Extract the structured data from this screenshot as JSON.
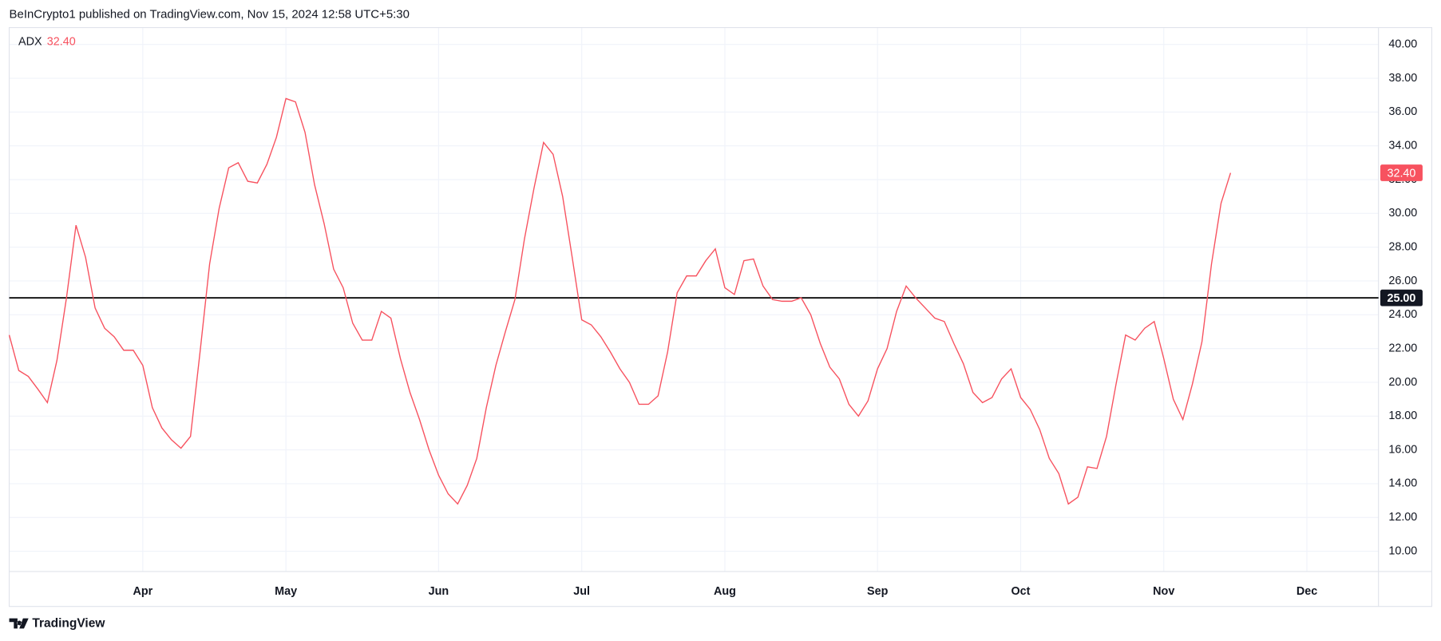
{
  "header": {
    "published": "BeInCrypto1 published on TradingView.com, Nov 15, 2024 12:58 UTC+5:30"
  },
  "footer": {
    "brand": "TradingView"
  },
  "chart_data": {
    "type": "line",
    "categories": [
      null,
      null,
      null,
      null,
      null,
      null,
      null,
      null,
      null,
      null,
      null,
      null,
      null,
      null,
      "Apr",
      null,
      null,
      null,
      null,
      null,
      null,
      null,
      null,
      null,
      null,
      null,
      null,
      null,
      null,
      "May",
      null,
      null,
      null,
      null,
      null,
      null,
      null,
      null,
      null,
      null,
      null,
      null,
      null,
      null,
      null,
      "Jun",
      null,
      null,
      null,
      null,
      null,
      null,
      null,
      null,
      null,
      null,
      null,
      null,
      null,
      null,
      "Jul",
      null,
      null,
      null,
      null,
      null,
      null,
      null,
      null,
      null,
      null,
      null,
      null,
      null,
      null,
      "Aug",
      null,
      null,
      null,
      null,
      null,
      null,
      null,
      null,
      null,
      null,
      null,
      null,
      null,
      null,
      null,
      "Sep",
      null,
      null,
      null,
      null,
      null,
      null,
      null,
      null,
      null,
      null,
      null,
      null,
      null,
      null,
      "Oct",
      null,
      null,
      null,
      null,
      null,
      null,
      null,
      null,
      null,
      null,
      null,
      null,
      null,
      null,
      "Nov",
      null,
      null,
      null,
      null,
      null,
      null,
      null,
      null,
      null,
      null,
      null,
      null,
      null,
      null,
      "Dec",
      null,
      null,
      null,
      null,
      null,
      null,
      null
    ],
    "series": [
      {
        "name": "ADX",
        "color": "#f7525f",
        "last_label": "32.40",
        "values": [
          22.8,
          20.7,
          20.35,
          19.6,
          18.8,
          21.3,
          25.0,
          29.3,
          27.4,
          24.4,
          23.2,
          22.7,
          21.9,
          21.9,
          21.0,
          18.5,
          17.3,
          16.6,
          16.1,
          16.8,
          21.8,
          27.0,
          30.3,
          32.7,
          33.0,
          31.9,
          31.8,
          32.9,
          34.5,
          36.8,
          36.6,
          34.8,
          31.7,
          29.4,
          26.7,
          25.6,
          23.5,
          22.5,
          22.5,
          24.2,
          23.8,
          21.4,
          19.4,
          17.8,
          16.0,
          14.5,
          13.4,
          12.8,
          13.9,
          15.5,
          18.5,
          21.0,
          23.0,
          24.9,
          28.5,
          31.5,
          34.2,
          33.5,
          31.0,
          27.4,
          23.7,
          23.4,
          22.7,
          21.8,
          20.8,
          20.0,
          18.7,
          18.7,
          19.2,
          21.8,
          25.3,
          26.3,
          26.3,
          27.2,
          27.9,
          25.6,
          25.2,
          27.2,
          27.3,
          25.7,
          24.9,
          24.8,
          24.8,
          25.0,
          24.0,
          22.3,
          20.9,
          20.2,
          18.7,
          18.0,
          18.9,
          20.8,
          22.0,
          24.2,
          25.7,
          25.0,
          24.4,
          23.8,
          23.6,
          22.3,
          21.1,
          19.4,
          18.8,
          19.1,
          20.2,
          20.8,
          19.1,
          18.4,
          17.2,
          15.5,
          14.6,
          12.8,
          13.2,
          15.0,
          14.9,
          16.8,
          19.9,
          22.8,
          22.5,
          23.2,
          23.6,
          21.4,
          19.0,
          17.8,
          19.9,
          22.4,
          27.0,
          30.6,
          32.4,
          null,
          null,
          null,
          null,
          null,
          null,
          null,
          null,
          null,
          null,
          null,
          null,
          null,
          null,
          null
        ]
      }
    ],
    "hline": {
      "value": 25,
      "label": "25.00",
      "color": "#000000"
    },
    "ylim": [
      8.8,
      41.0
    ],
    "yticks": [
      {
        "value": 10,
        "label": "10.00"
      },
      {
        "value": 12,
        "label": "12.00"
      },
      {
        "value": 14,
        "label": "14.00"
      },
      {
        "value": 16,
        "label": "16.00"
      },
      {
        "value": 18,
        "label": "18.00"
      },
      {
        "value": 20,
        "label": "20.00"
      },
      {
        "value": 22,
        "label": "22.00"
      },
      {
        "value": 24,
        "label": "24.00"
      },
      {
        "value": 26,
        "label": "26.00"
      },
      {
        "value": 28,
        "label": "28.00"
      },
      {
        "value": 30,
        "label": "30.00"
      },
      {
        "value": 32,
        "label": "32.00"
      },
      {
        "value": 34,
        "label": "34.00"
      },
      {
        "value": 36,
        "label": "36.00"
      },
      {
        "value": 38,
        "label": "38.00"
      },
      {
        "value": 40,
        "label": "40.00"
      }
    ],
    "grid": true
  }
}
